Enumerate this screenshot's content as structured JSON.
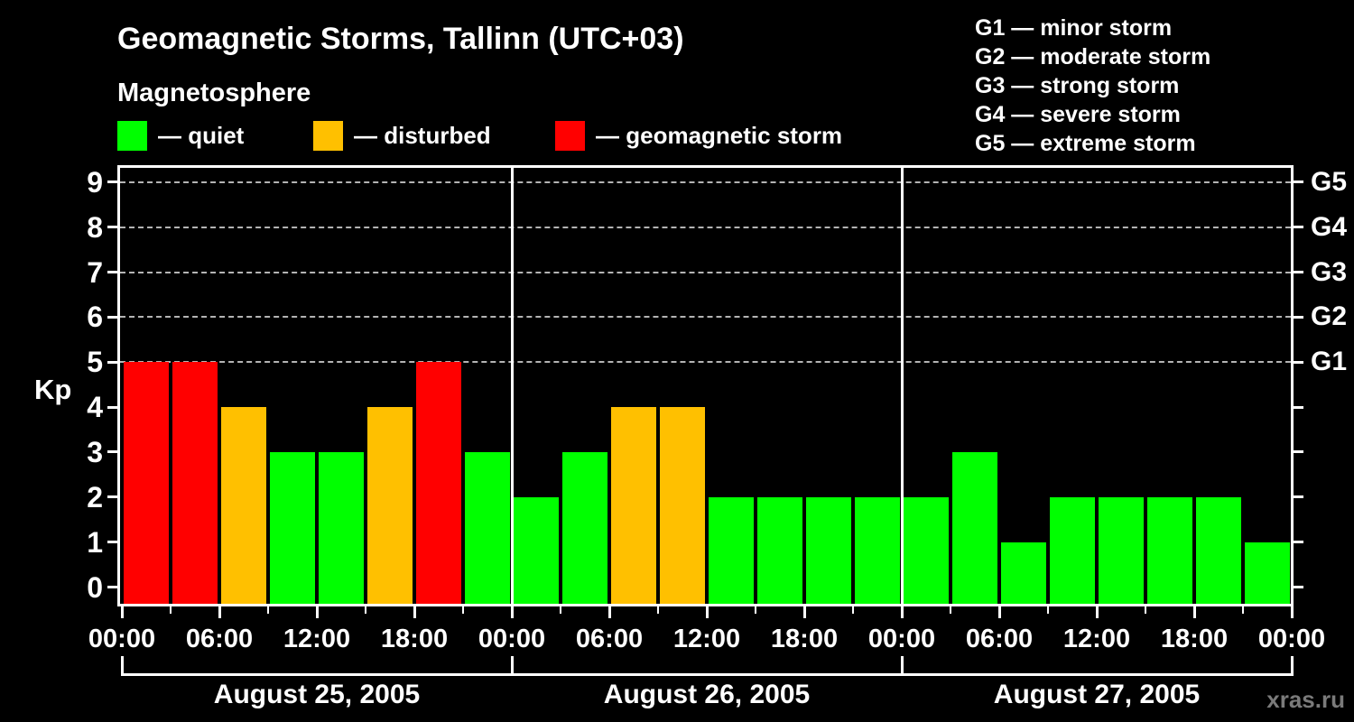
{
  "title": "Geomagnetic Storms, Tallinn (UTC+03)",
  "subtitle": "Magnetosphere",
  "legend": {
    "items": [
      {
        "key": "quiet",
        "label": "— quiet",
        "color": "#00ff00"
      },
      {
        "key": "disturbed",
        "label": "— disturbed",
        "color": "#ffc000"
      },
      {
        "key": "storm",
        "label": "— geomagnetic storm",
        "color": "#ff0000"
      }
    ]
  },
  "g_legend": [
    "G1 — minor storm",
    "G2 — moderate storm",
    "G3 — strong storm",
    "G4 — severe storm",
    "G5 — extreme storm"
  ],
  "watermark": "xras.ru",
  "chart_data": {
    "type": "bar",
    "title": "Geomagnetic Storms, Tallinn (UTC+03)",
    "subtitle": "Magnetosphere",
    "ylabel": "Kp",
    "ylim": [
      0,
      9
    ],
    "y_ticks": [
      0,
      1,
      2,
      3,
      4,
      5,
      6,
      7,
      8,
      9
    ],
    "grid_levels": [
      5,
      6,
      7,
      8,
      9
    ],
    "grid_style": "dashed",
    "right_axis_labels": [
      {
        "kp": 5,
        "label": "G1"
      },
      {
        "kp": 6,
        "label": "G2"
      },
      {
        "kp": 7,
        "label": "G3"
      },
      {
        "kp": 8,
        "label": "G4"
      },
      {
        "kp": 9,
        "label": "G5"
      }
    ],
    "bar_interval_hours": 3,
    "x_major_tick_hours": 6,
    "x_tick_labels": [
      "00:00",
      "06:00",
      "12:00",
      "18:00"
    ],
    "color_rule": {
      "quiet_max_kp": 3,
      "disturbed_kp": 4,
      "storm_min_kp": 5
    },
    "colors": {
      "quiet": "#00ff00",
      "disturbed": "#ffc000",
      "storm": "#ff0000"
    },
    "days": [
      {
        "date": "August 25, 2005",
        "values": [
          5,
          5,
          4,
          3,
          3,
          4,
          5,
          3
        ]
      },
      {
        "date": "August 26, 2005",
        "values": [
          2,
          3,
          4,
          4,
          2,
          2,
          2,
          2
        ]
      },
      {
        "date": "August 27, 2005",
        "values": [
          2,
          3,
          1,
          2,
          2,
          2,
          2,
          1
        ]
      }
    ],
    "legend_position": "top",
    "background": "#000000"
  }
}
